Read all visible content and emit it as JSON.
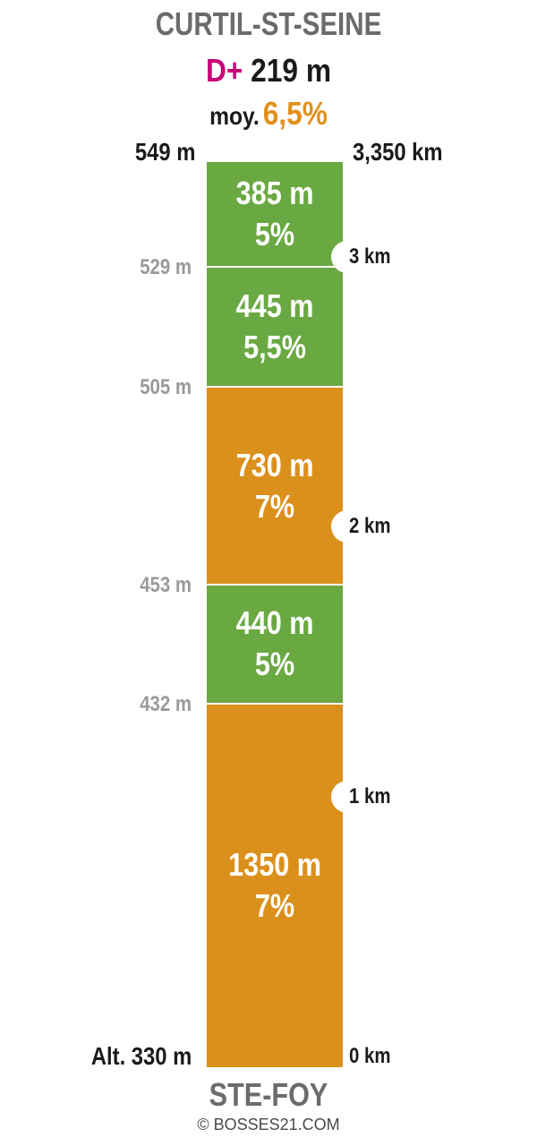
{
  "header": {
    "title": "CURTIL-ST-SEINE",
    "dplus_label": "D+",
    "dplus_value": "219 m",
    "moy_label": "moy.",
    "moy_value": "6,5%"
  },
  "top": {
    "altitude": "549 m",
    "distance": "3,350 km"
  },
  "footer": {
    "start_name": "STE-FOY",
    "credit": "© BOSSES21.COM"
  },
  "chart_data": {
    "type": "bar",
    "orientation": "vertical-stacked-profile",
    "total_distance_km": 3.35,
    "altitude_range_m": [
      330,
      549
    ],
    "base_altitude_label": "Alt. 330 m",
    "base_km_label": "0 km",
    "segments": [
      {
        "length_label": "1350 m",
        "grade_label": "7%",
        "length_m": 1350,
        "grade_pct": 7,
        "color": "#db901b",
        "end_alt_label": "432 m"
      },
      {
        "length_label": "440 m",
        "grade_label": "5%",
        "length_m": 440,
        "grade_pct": 5,
        "color": "#6aa842",
        "end_alt_label": "453 m"
      },
      {
        "length_label": "730 m",
        "grade_label": "7%",
        "length_m": 730,
        "grade_pct": 7,
        "color": "#db901b",
        "end_alt_label": "505 m"
      },
      {
        "length_label": "445 m",
        "grade_label": "5,5%",
        "length_m": 445,
        "grade_pct": 5.5,
        "color": "#6aa842",
        "end_alt_label": "529 m"
      },
      {
        "length_label": "385 m",
        "grade_label": "5%",
        "length_m": 385,
        "grade_pct": 5,
        "color": "#6aa842",
        "end_alt_label": ""
      }
    ],
    "km_markers": [
      {
        "km": 1,
        "label": "1 km"
      },
      {
        "km": 2,
        "label": "2 km"
      },
      {
        "km": 3,
        "label": "3 km"
      }
    ]
  }
}
